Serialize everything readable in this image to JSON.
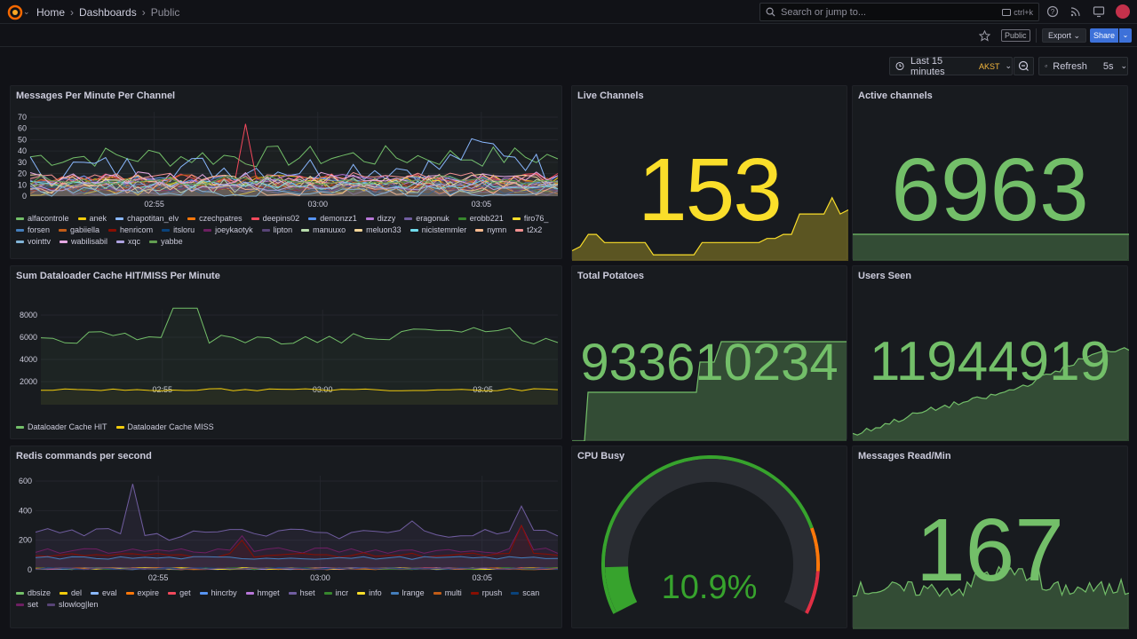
{
  "nav": {
    "crumbs": [
      "Home",
      "Dashboards",
      "Public"
    ],
    "search_placeholder": "Search or jump to...",
    "search_shortcut": "ctrl+k",
    "public_badge": "Public",
    "export_label": "Export",
    "share_label": "Share"
  },
  "toolbar": {
    "time_range": "Last 15 minutes",
    "timezone": "AKST",
    "refresh_label": "Refresh",
    "refresh_interval": "5s"
  },
  "panels": {
    "messages": {
      "title": "Messages Per Minute Per Channel",
      "yticks": [
        "70",
        "60",
        "50",
        "40",
        "30",
        "20",
        "10",
        "0"
      ],
      "xticks": [
        "02:55",
        "03:00",
        "03:05"
      ],
      "legend": [
        {
          "name": "alfacontrole",
          "color": "#73bf69"
        },
        {
          "name": "anek",
          "color": "#f2cc0c"
        },
        {
          "name": "chapotitan_elv",
          "color": "#8ab8ff"
        },
        {
          "name": "czechpatres",
          "color": "#ff780a"
        },
        {
          "name": "deepins02",
          "color": "#f2495c"
        },
        {
          "name": "demonzz1",
          "color": "#5794f2"
        },
        {
          "name": "dizzy",
          "color": "#b877d9"
        },
        {
          "name": "eragonuk",
          "color": "#705da0"
        },
        {
          "name": "erobb221",
          "color": "#37872d"
        },
        {
          "name": "firo76_",
          "color": "#fade2a"
        },
        {
          "name": "forsen",
          "color": "#447ebc"
        },
        {
          "name": "gabiiella",
          "color": "#c15c17"
        },
        {
          "name": "henricom",
          "color": "#890f02"
        },
        {
          "name": "itsloru",
          "color": "#0a437c"
        },
        {
          "name": "joeykaotyk",
          "color": "#6d1f62"
        },
        {
          "name": "lipton",
          "color": "#584477"
        },
        {
          "name": "manuuxo",
          "color": "#b7dbab"
        },
        {
          "name": "meluon33",
          "color": "#f4d598"
        },
        {
          "name": "nicistemmler",
          "color": "#70dbed"
        },
        {
          "name": "nymn",
          "color": "#f9ba8f"
        },
        {
          "name": "t2x2",
          "color": "#f29191"
        },
        {
          "name": "vointtv",
          "color": "#82b5d8"
        },
        {
          "name": "wabilisabil",
          "color": "#e5a8e2"
        },
        {
          "name": "xqc",
          "color": "#aea2e0"
        },
        {
          "name": "yabbe",
          "color": "#629e51"
        }
      ]
    },
    "live_channels": {
      "title": "Live Channels",
      "value": "153",
      "color": "#fade2a"
    },
    "active_channels": {
      "title": "Active channels",
      "value": "6963",
      "color": "#73bf69"
    },
    "cache": {
      "title": "Sum Dataloader Cache HIT/MISS Per Minute",
      "yticks": [
        "8000",
        "6000",
        "4000",
        "2000"
      ],
      "xticks": [
        "02:55",
        "03:00",
        "03:05"
      ],
      "legend": [
        {
          "name": "Dataloader Cache HIT",
          "color": "#73bf69"
        },
        {
          "name": "Dataloader Cache MISS",
          "color": "#f2cc0c"
        }
      ]
    },
    "total_potatoes": {
      "title": "Total Potatoes",
      "value": "933610234",
      "color": "#73bf69"
    },
    "users_seen": {
      "title": "Users Seen",
      "value": "11944919",
      "color": "#73bf69"
    },
    "redis": {
      "title": "Redis commands per second",
      "yticks": [
        "600",
        "400",
        "200",
        "0"
      ],
      "xticks": [
        "02:55",
        "03:00",
        "03:05"
      ],
      "legend": [
        {
          "name": "dbsize",
          "color": "#73bf69"
        },
        {
          "name": "del",
          "color": "#f2cc0c"
        },
        {
          "name": "eval",
          "color": "#8ab8ff"
        },
        {
          "name": "expire",
          "color": "#ff780a"
        },
        {
          "name": "get",
          "color": "#f2495c"
        },
        {
          "name": "hincrby",
          "color": "#5794f2"
        },
        {
          "name": "hmget",
          "color": "#b877d9"
        },
        {
          "name": "hset",
          "color": "#705da0"
        },
        {
          "name": "incr",
          "color": "#37872d"
        },
        {
          "name": "info",
          "color": "#fade2a"
        },
        {
          "name": "lrange",
          "color": "#447ebc"
        },
        {
          "name": "multi",
          "color": "#c15c17"
        },
        {
          "name": "rpush",
          "color": "#890f02"
        },
        {
          "name": "scan",
          "color": "#0a437c"
        },
        {
          "name": "set",
          "color": "#6d1f62"
        },
        {
          "name": "slowlog|len",
          "color": "#584477"
        }
      ]
    },
    "cpu_busy": {
      "title": "CPU Busy",
      "value": "10.9%",
      "fraction": 0.109,
      "color": "#37a32d"
    },
    "messages_read": {
      "title": "Messages Read/Min",
      "value": "167",
      "color": "#73bf69"
    }
  }
}
